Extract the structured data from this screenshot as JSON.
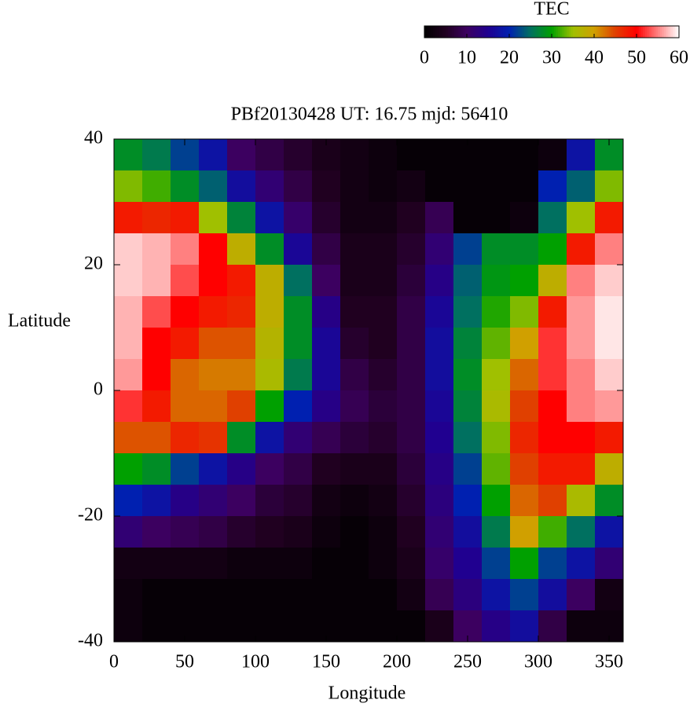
{
  "chart_data": {
    "type": "heatmap",
    "title": "PBf20130428  UT: 16.75  mjd: 56410",
    "xlabel": "Longitude",
    "ylabel": "Latitude",
    "colorbar_label": "TEC",
    "x": [
      10,
      30,
      50,
      70,
      90,
      110,
      130,
      150,
      170,
      190,
      210,
      230,
      250,
      270,
      290,
      310,
      330,
      350
    ],
    "y": [
      37.5,
      32.5,
      27.5,
      22.5,
      17.5,
      12.5,
      7.5,
      2.5,
      -2.5,
      -7.5,
      -12.5,
      -17.5,
      -22.5,
      -27.5,
      -32.5,
      -37.5
    ],
    "z": [
      [
        28,
        26,
        22,
        18,
        10,
        8,
        6,
        4,
        3,
        2,
        1,
        1,
        1,
        1,
        1,
        2,
        18,
        28
      ],
      [
        34,
        32,
        28,
        24,
        17,
        12,
        8,
        5,
        3,
        2,
        3,
        1,
        1,
        1,
        1,
        20,
        24,
        34
      ],
      [
        48,
        47,
        48,
        35,
        27,
        18,
        11,
        6,
        3,
        3,
        5,
        9,
        1,
        1,
        2,
        25,
        35,
        48
      ],
      [
        58,
        57,
        55,
        50,
        38,
        28,
        16,
        8,
        4,
        4,
        6,
        12,
        22,
        28,
        28,
        30,
        48,
        55
      ],
      [
        58,
        57,
        53,
        50,
        48,
        38,
        25,
        10,
        4,
        4,
        7,
        14,
        24,
        29,
        30,
        38,
        55,
        58
      ],
      [
        57,
        53,
        50,
        48,
        47,
        38,
        28,
        14,
        5,
        5,
        8,
        16,
        25,
        31,
        34,
        48,
        56,
        59
      ],
      [
        57,
        50,
        48,
        44,
        44,
        37,
        28,
        16,
        6,
        5,
        8,
        17,
        27,
        33,
        40,
        52,
        56,
        59
      ],
      [
        56,
        50,
        43,
        42,
        42,
        36,
        26,
        16,
        8,
        6,
        8,
        17,
        28,
        35,
        43,
        52,
        55,
        58
      ],
      [
        52,
        48,
        43,
        43,
        45,
        30,
        20,
        14,
        9,
        7,
        8,
        16,
        27,
        36,
        45,
        50,
        55,
        56
      ],
      [
        44,
        44,
        47,
        46,
        28,
        18,
        12,
        9,
        7,
        6,
        8,
        15,
        25,
        34,
        47,
        50,
        50,
        48
      ],
      [
        30,
        28,
        22,
        18,
        14,
        10,
        8,
        5,
        4,
        4,
        7,
        14,
        22,
        33,
        45,
        48,
        48,
        38
      ],
      [
        20,
        18,
        14,
        12,
        10,
        7,
        6,
        3,
        2,
        3,
        6,
        13,
        20,
        30,
        43,
        45,
        36,
        28
      ],
      [
        12,
        10,
        9,
        8,
        6,
        5,
        4,
        2,
        1,
        2,
        5,
        12,
        17,
        26,
        40,
        32,
        25,
        18
      ],
      [
        3,
        3,
        3,
        3,
        2,
        2,
        2,
        1,
        1,
        2,
        4,
        11,
        15,
        22,
        30,
        22,
        18,
        12
      ],
      [
        2,
        1,
        1,
        1,
        1,
        1,
        1,
        1,
        1,
        1,
        3,
        9,
        13,
        18,
        22,
        17,
        10,
        3
      ],
      [
        2,
        1,
        1,
        1,
        1,
        1,
        1,
        1,
        1,
        1,
        1,
        4,
        10,
        14,
        17,
        8,
        2,
        2
      ]
    ],
    "xlim": [
      0,
      360
    ],
    "ylim": [
      -40,
      40
    ],
    "xticks": [
      0,
      50,
      100,
      150,
      200,
      250,
      300,
      350
    ],
    "yticks": [
      -40,
      -20,
      0,
      20,
      40
    ],
    "clim": [
      0,
      60
    ],
    "cticks": [
      0,
      10,
      20,
      30,
      40,
      50,
      60
    ],
    "colors": [
      "#000000",
      "#200020",
      "#3c0060",
      "#200090",
      "#0020b0",
      "#007060",
      "#00a000",
      "#a0c000",
      "#d0a000",
      "#e04000",
      "#ff0000",
      "#ff8080",
      "#ffffff"
    ]
  }
}
